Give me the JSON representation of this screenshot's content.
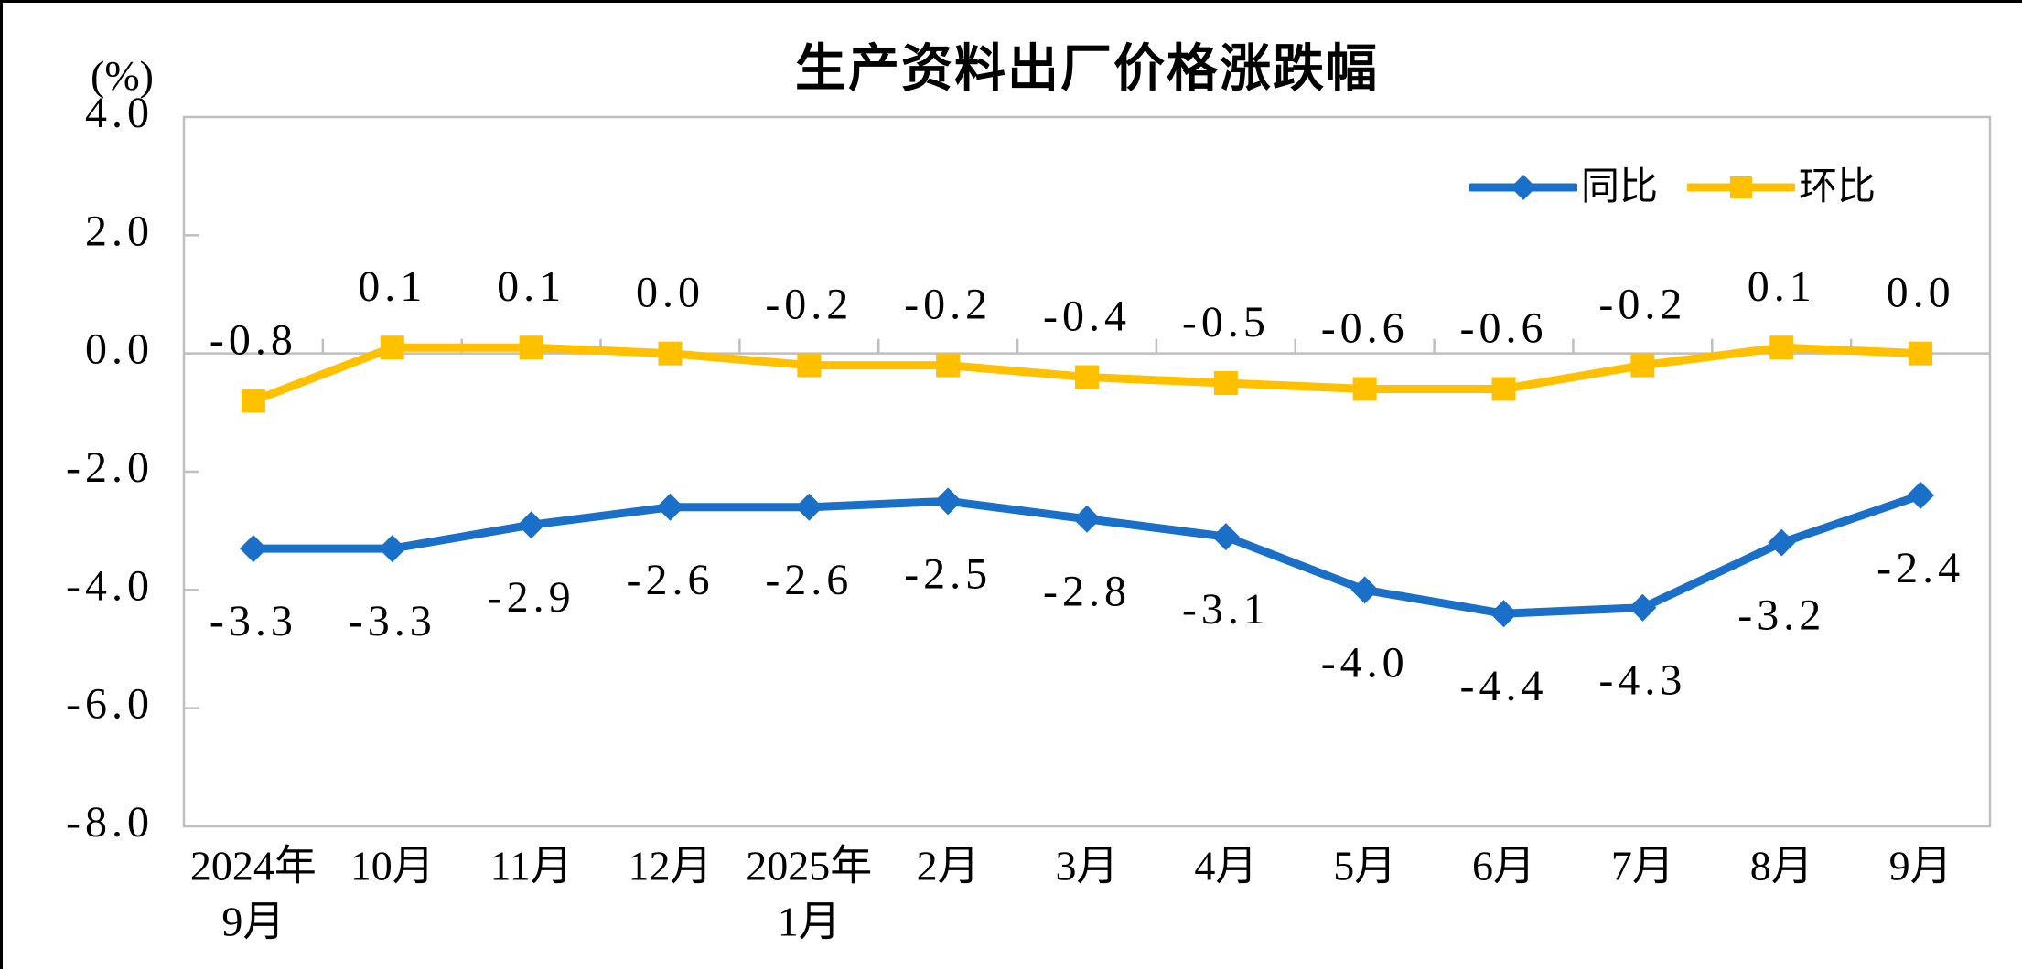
{
  "title": "生产资料出厂价格涨跌幅",
  "axis_unit_label": "(%)",
  "legend": {
    "yoy_label": "同比",
    "mom_label": "环比"
  },
  "colors": {
    "yoy_blue": "#1A70C8",
    "mom_yellow": "#FFC000",
    "grid_gray": "#BFBFBF",
    "text_black": "#000000",
    "background": "#FFFFFF"
  },
  "chart_data": {
    "type": "line",
    "title": "生产资料出厂价格涨跌幅",
    "ylabel": "(%)",
    "xlabel": "",
    "ylim": [
      -8.0,
      4.0
    ],
    "ytick_step": 2.0,
    "ytick_labels": [
      "4.0",
      "2.0",
      "0.0",
      "-2.0",
      "-4.0",
      "-6.0",
      "-8.0"
    ],
    "grid": "horizontal zero line only, gray plot border box",
    "legend_position": "top-right inside plot",
    "categories": [
      [
        "2024年",
        "9月"
      ],
      [
        "10月"
      ],
      [
        "11月"
      ],
      [
        "12月"
      ],
      [
        "2025年",
        "1月"
      ],
      [
        "2月"
      ],
      [
        "3月"
      ],
      [
        "4月"
      ],
      [
        "5月"
      ],
      [
        "6月"
      ],
      [
        "7月"
      ],
      [
        "8月"
      ],
      [
        "9月"
      ]
    ],
    "series": [
      {
        "name": "同比",
        "color": "#1A70C8",
        "marker": "diamond",
        "label_position": "below",
        "values": [
          -3.3,
          -3.3,
          -2.9,
          -2.6,
          -2.6,
          -2.5,
          -2.8,
          -3.1,
          -4.0,
          -4.4,
          -4.3,
          -3.2,
          -2.4
        ],
        "labels": [
          "-3.3",
          "-3.3",
          "-2.9",
          "-2.6",
          "-2.6",
          "-2.5",
          "-2.8",
          "-3.1",
          "-4.0",
          "-4.4",
          "-4.3",
          "-3.2",
          "-2.4"
        ]
      },
      {
        "name": "环比",
        "color": "#FFC000",
        "marker": "square",
        "label_position": "above",
        "values": [
          -0.8,
          0.1,
          0.1,
          0.0,
          -0.2,
          -0.2,
          -0.4,
          -0.5,
          -0.6,
          -0.6,
          -0.2,
          0.1,
          0.0
        ],
        "labels": [
          "-0.8",
          "0.1",
          "0.1",
          "0.0",
          "-0.2",
          "-0.2",
          "-0.4",
          "-0.5",
          "-0.6",
          "-0.6",
          "-0.2",
          "0.1",
          "0.0"
        ]
      }
    ]
  }
}
